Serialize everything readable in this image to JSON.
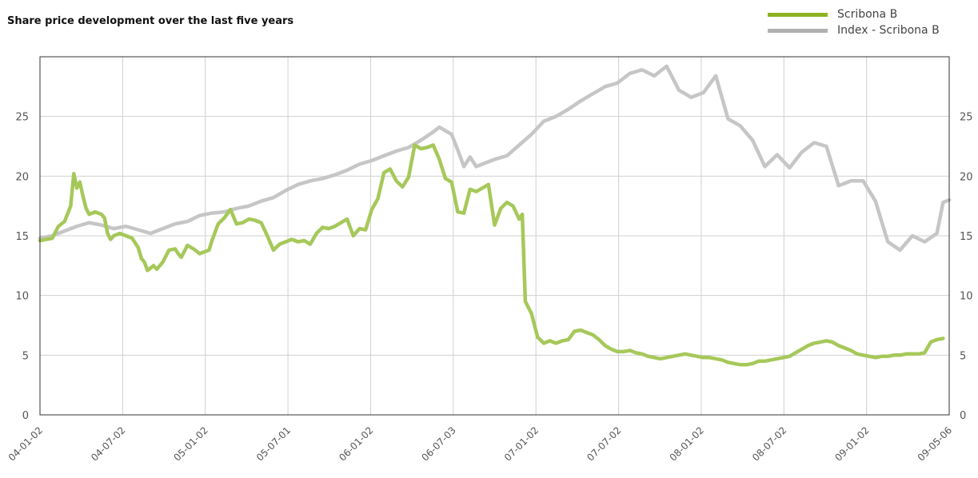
{
  "chart_data": {
    "type": "line",
    "title": "Share price development over the last five years",
    "xlabel": "",
    "ylabel": "",
    "ylim": [
      0,
      30
    ],
    "yticks": [
      0,
      5,
      10,
      15,
      20,
      25
    ],
    "grid": true,
    "legend_position": "top-right",
    "x_tick_labels": [
      "04-01-02",
      "04-07-02",
      "05-01-02",
      "05-07-01",
      "06-01-02",
      "06-07-03",
      "07-01-02",
      "07-07-02",
      "08-01-02",
      "08-07-02",
      "09-01-02",
      "09-05-06"
    ],
    "series": [
      {
        "name": "Scribona B",
        "color": "#a6c85a",
        "legend_color": "#8db322",
        "values": [
          [
            0,
            14.6
          ],
          [
            2,
            14.8
          ],
          [
            3,
            15.8
          ],
          [
            4,
            16.2
          ],
          [
            5,
            17.5
          ],
          [
            5.5,
            20.2
          ],
          [
            6,
            19.0
          ],
          [
            6.5,
            19.5
          ],
          [
            7,
            18.3
          ],
          [
            7.5,
            17.3
          ],
          [
            8,
            16.8
          ],
          [
            9,
            17.0
          ],
          [
            10,
            16.8
          ],
          [
            10.5,
            16.5
          ],
          [
            11,
            15.2
          ],
          [
            11.5,
            14.7
          ],
          [
            12,
            15.0
          ],
          [
            13,
            15.2
          ],
          [
            14,
            15.0
          ],
          [
            15,
            14.8
          ],
          [
            15.5,
            14.4
          ],
          [
            16,
            14.0
          ],
          [
            16.5,
            13.1
          ],
          [
            17,
            12.8
          ],
          [
            17.5,
            12.1
          ],
          [
            18,
            12.3
          ],
          [
            18.5,
            12.5
          ],
          [
            19,
            12.2
          ],
          [
            20,
            12.8
          ],
          [
            21,
            13.8
          ],
          [
            22,
            13.9
          ],
          [
            22.5,
            13.5
          ],
          [
            23,
            13.2
          ],
          [
            24,
            14.2
          ],
          [
            25,
            13.9
          ],
          [
            26,
            13.5
          ],
          [
            27,
            13.7
          ],
          [
            27.5,
            13.8
          ],
          [
            28,
            14.6
          ],
          [
            29,
            16.0
          ],
          [
            30,
            16.5
          ],
          [
            31,
            17.2
          ],
          [
            32,
            16.0
          ],
          [
            33,
            16.1
          ],
          [
            34,
            16.4
          ],
          [
            35,
            16.3
          ],
          [
            36,
            16.1
          ],
          [
            37,
            15.0
          ],
          [
            38,
            13.8
          ],
          [
            39,
            14.3
          ],
          [
            40,
            14.5
          ],
          [
            41,
            14.7
          ],
          [
            42,
            14.5
          ],
          [
            43,
            14.6
          ],
          [
            44,
            14.3
          ],
          [
            45,
            15.2
          ],
          [
            46,
            15.7
          ],
          [
            47,
            15.6
          ],
          [
            48,
            15.8
          ],
          [
            49,
            16.1
          ],
          [
            50,
            16.4
          ],
          [
            51,
            15.0
          ],
          [
            52,
            15.6
          ],
          [
            53,
            15.5
          ],
          [
            54,
            17.2
          ],
          [
            55,
            18.1
          ],
          [
            56,
            20.3
          ],
          [
            57,
            20.6
          ],
          [
            58,
            19.6
          ],
          [
            59,
            19.1
          ],
          [
            60,
            19.9
          ],
          [
            61,
            22.6
          ],
          [
            62,
            22.3
          ],
          [
            63,
            22.4
          ],
          [
            64,
            22.6
          ],
          [
            65,
            21.4
          ],
          [
            66,
            19.8
          ],
          [
            67,
            19.5
          ],
          [
            68,
            17.0
          ],
          [
            69,
            16.9
          ],
          [
            70,
            18.9
          ],
          [
            71,
            18.7
          ],
          [
            72,
            19.0
          ],
          [
            73,
            19.3
          ],
          [
            74,
            15.9
          ],
          [
            75,
            17.3
          ],
          [
            76,
            17.8
          ],
          [
            77,
            17.5
          ],
          [
            78,
            16.4
          ],
          [
            78.5,
            16.8
          ],
          [
            79,
            9.5
          ],
          [
            80,
            8.5
          ],
          [
            81,
            6.5
          ],
          [
            82,
            6.0
          ],
          [
            83,
            6.2
          ],
          [
            84,
            6.0
          ],
          [
            85,
            6.2
          ],
          [
            86,
            6.3
          ],
          [
            87,
            7.0
          ],
          [
            88,
            7.1
          ],
          [
            89,
            6.9
          ],
          [
            90,
            6.7
          ],
          [
            91,
            6.3
          ],
          [
            92,
            5.8
          ],
          [
            93,
            5.5
          ],
          [
            94,
            5.3
          ],
          [
            95,
            5.3
          ],
          [
            96,
            5.4
          ],
          [
            97,
            5.2
          ],
          [
            98,
            5.1
          ],
          [
            99,
            4.9
          ],
          [
            100,
            4.8
          ],
          [
            101,
            4.7
          ],
          [
            102,
            4.8
          ],
          [
            103,
            4.9
          ],
          [
            104,
            5.0
          ],
          [
            105,
            5.1
          ],
          [
            106,
            5.0
          ],
          [
            107,
            4.9
          ],
          [
            108,
            4.8
          ],
          [
            109,
            4.8
          ],
          [
            110,
            4.7
          ],
          [
            111,
            4.6
          ],
          [
            112,
            4.4
          ],
          [
            113,
            4.3
          ],
          [
            114,
            4.2
          ],
          [
            115,
            4.2
          ],
          [
            116,
            4.3
          ],
          [
            117,
            4.5
          ],
          [
            118,
            4.5
          ],
          [
            119,
            4.6
          ],
          [
            120,
            4.7
          ],
          [
            121,
            4.8
          ],
          [
            122,
            4.9
          ],
          [
            123,
            5.2
          ],
          [
            124,
            5.5
          ],
          [
            125,
            5.8
          ],
          [
            126,
            6.0
          ],
          [
            127,
            6.1
          ],
          [
            128,
            6.2
          ],
          [
            129,
            6.1
          ],
          [
            130,
            5.8
          ],
          [
            131,
            5.6
          ],
          [
            132,
            5.4
          ],
          [
            133,
            5.1
          ],
          [
            134,
            5.0
          ],
          [
            135,
            4.9
          ],
          [
            136,
            4.8
          ],
          [
            137,
            4.9
          ],
          [
            138,
            4.9
          ],
          [
            139,
            5.0
          ],
          [
            140,
            5.0
          ],
          [
            141,
            5.1
          ],
          [
            142,
            5.1
          ],
          [
            143,
            5.1
          ],
          [
            144,
            5.2
          ],
          [
            145,
            6.1
          ],
          [
            146,
            6.3
          ],
          [
            147,
            6.4
          ]
        ]
      },
      {
        "name": "Index - Scribona B",
        "color": "#c6c6c6",
        "legend_color": "#b0b0b0",
        "values": [
          [
            0,
            14.8
          ],
          [
            2,
            15.0
          ],
          [
            4,
            15.4
          ],
          [
            6,
            15.8
          ],
          [
            8,
            16.1
          ],
          [
            10,
            15.9
          ],
          [
            12,
            15.6
          ],
          [
            14,
            15.8
          ],
          [
            16,
            15.5
          ],
          [
            18,
            15.2
          ],
          [
            20,
            15.6
          ],
          [
            22,
            16.0
          ],
          [
            24,
            16.2
          ],
          [
            26,
            16.7
          ],
          [
            28,
            16.9
          ],
          [
            30,
            17.0
          ],
          [
            32,
            17.3
          ],
          [
            34,
            17.5
          ],
          [
            36,
            17.9
          ],
          [
            38,
            18.2
          ],
          [
            40,
            18.8
          ],
          [
            42,
            19.3
          ],
          [
            44,
            19.6
          ],
          [
            46,
            19.8
          ],
          [
            48,
            20.1
          ],
          [
            50,
            20.5
          ],
          [
            52,
            21.0
          ],
          [
            54,
            21.3
          ],
          [
            56,
            21.7
          ],
          [
            58,
            22.1
          ],
          [
            60,
            22.4
          ],
          [
            62,
            23.0
          ],
          [
            64,
            23.7
          ],
          [
            65,
            24.1
          ],
          [
            66,
            23.8
          ],
          [
            67,
            23.5
          ],
          [
            68,
            22.2
          ],
          [
            69,
            20.8
          ],
          [
            70,
            21.6
          ],
          [
            71,
            20.8
          ],
          [
            72,
            21.0
          ],
          [
            74,
            21.4
          ],
          [
            76,
            21.7
          ],
          [
            78,
            22.6
          ],
          [
            80,
            23.5
          ],
          [
            82,
            24.6
          ],
          [
            84,
            25.0
          ],
          [
            86,
            25.6
          ],
          [
            88,
            26.3
          ],
          [
            90,
            26.9
          ],
          [
            92,
            27.5
          ],
          [
            94,
            27.8
          ],
          [
            96,
            28.6
          ],
          [
            98,
            28.9
          ],
          [
            100,
            28.4
          ],
          [
            102,
            29.2
          ],
          [
            104,
            27.2
          ],
          [
            106,
            26.6
          ],
          [
            108,
            27.0
          ],
          [
            110,
            28.4
          ],
          [
            112,
            24.8
          ],
          [
            114,
            24.2
          ],
          [
            116,
            23.0
          ],
          [
            118,
            20.8
          ],
          [
            120,
            21.8
          ],
          [
            122,
            20.7
          ],
          [
            124,
            22.0
          ],
          [
            126,
            22.8
          ],
          [
            128,
            22.5
          ],
          [
            130,
            19.2
          ],
          [
            132,
            19.6
          ],
          [
            134,
            19.6
          ],
          [
            136,
            17.9
          ],
          [
            138,
            14.5
          ],
          [
            140,
            13.8
          ],
          [
            142,
            15.0
          ],
          [
            144,
            14.5
          ],
          [
            146,
            15.2
          ],
          [
            147,
            17.8
          ],
          [
            148,
            18.0
          ]
        ]
      }
    ]
  }
}
